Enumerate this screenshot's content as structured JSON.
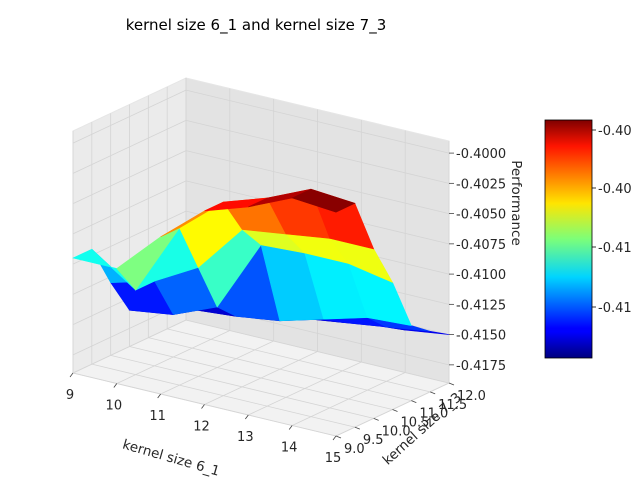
{
  "chart_data": {
    "type": "surface3d",
    "title": "kernel size 6_1 and kernel size 7_3",
    "xlabel": "kernel size 6_1",
    "ylabel": "kernel size 7_3",
    "zlabel": "Performance",
    "x_ticks": [
      "9",
      "10",
      "11",
      "12",
      "13",
      "14",
      "15"
    ],
    "y_ticks": [
      "9.0",
      "9.5",
      "10.0",
      "10.5",
      "11.0",
      "11.5",
      "12.0"
    ],
    "z_ticks": [
      "-0.4000",
      "-0.4025",
      "-0.4050",
      "-0.4075",
      "-0.4100",
      "-0.4125",
      "-0.4150",
      "-0.4175"
    ],
    "xlim": [
      9,
      15
    ],
    "ylim": [
      9,
      12
    ],
    "zlim": [
      -0.419,
      -0.399
    ],
    "colorbar_ticks": [
      "-0.40",
      "-0.40",
      "-0.41",
      "-0.41"
    ],
    "colormap": "jet",
    "x": [
      9,
      10,
      11,
      12,
      13,
      14,
      15
    ],
    "y": [
      9.0,
      9.5,
      10.0,
      10.5,
      11.0,
      11.5,
      12.0
    ],
    "z": [
      [
        -0.4095,
        -0.4095,
        -0.406,
        -0.403,
        -0.4018,
        -0.4002,
        -0.4005
      ],
      [
        -0.4095,
        -0.412,
        -0.406,
        -0.403,
        -0.4018,
        -0.4002,
        -0.4005
      ],
      [
        -0.413,
        -0.412,
        -0.41,
        -0.406,
        -0.4055,
        -0.405,
        -0.405
      ],
      [
        -0.416,
        -0.4155,
        -0.414,
        -0.408,
        -0.4078,
        -0.4078,
        -0.4085
      ],
      [
        -0.4158,
        -0.4158,
        -0.4155,
        -0.415,
        -0.414,
        -0.413,
        -0.4128
      ],
      [
        -0.416,
        -0.416,
        -0.4158,
        -0.4155,
        -0.415,
        -0.4145,
        -0.414
      ],
      [
        -0.4165,
        -0.4165,
        -0.4163,
        -0.416,
        -0.4158,
        -0.4155,
        -0.415
      ]
    ]
  }
}
